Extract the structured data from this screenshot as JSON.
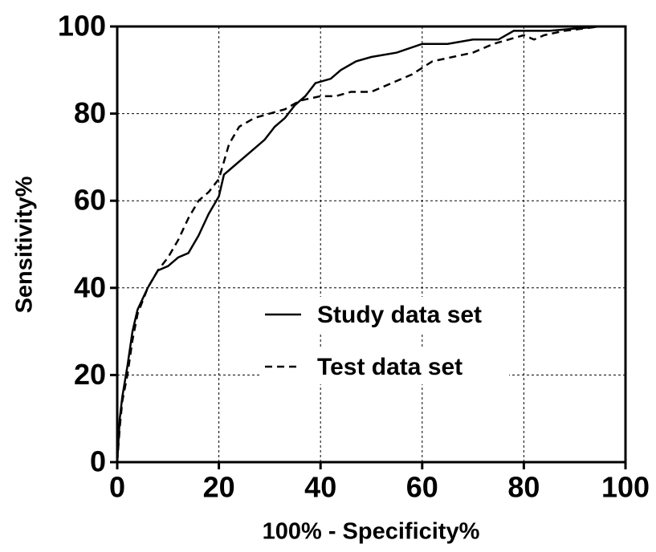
{
  "chart_data": {
    "type": "line",
    "x_label": "100% - Specificity%",
    "y_label": "Sensitivity%",
    "xlim": [
      0,
      100
    ],
    "ylim": [
      0,
      100
    ],
    "xticks": [
      0,
      20,
      40,
      60,
      80,
      100
    ],
    "yticks": [
      0,
      20,
      40,
      60,
      80,
      100
    ],
    "grid": true,
    "legend": "center",
    "series": [
      {
        "name": "Study data set",
        "color": "#000000",
        "dash": "solid",
        "x": [
          0,
          0.5,
          1,
          2,
          3,
          4,
          6,
          8,
          10,
          12,
          14,
          16,
          18,
          20,
          21,
          23,
          25,
          27,
          29,
          31,
          33,
          35,
          37,
          39,
          42,
          44,
          47,
          50,
          55,
          60,
          65,
          70,
          75,
          78,
          85,
          95,
          100
        ],
        "values": [
          0,
          10,
          15,
          22,
          30,
          35,
          40,
          44,
          45,
          47,
          48,
          52,
          57,
          61,
          66,
          68,
          70,
          72,
          74,
          77,
          79,
          82,
          84,
          87,
          88,
          90,
          92,
          93,
          94,
          96,
          96,
          97,
          97,
          99,
          99,
          100,
          100
        ]
      },
      {
        "name": "Test data set",
        "color": "#000000",
        "dash": "dashed",
        "x": [
          0,
          0.5,
          1,
          2,
          3,
          4,
          6,
          8,
          10,
          12,
          14,
          16,
          18,
          20,
          22,
          24,
          27,
          30,
          33,
          36,
          40,
          43,
          46,
          50,
          54,
          58,
          62,
          66,
          70,
          74,
          77,
          80,
          82,
          84,
          88,
          95,
          100
        ],
        "values": [
          0,
          8,
          14,
          20,
          28,
          34,
          40,
          44,
          47,
          51,
          56,
          60,
          62,
          65,
          73,
          77,
          79,
          80,
          81,
          83,
          84,
          84,
          85,
          85,
          87,
          89,
          92,
          93,
          94,
          96,
          97,
          98,
          97,
          98,
          99,
          100,
          100
        ]
      }
    ]
  }
}
